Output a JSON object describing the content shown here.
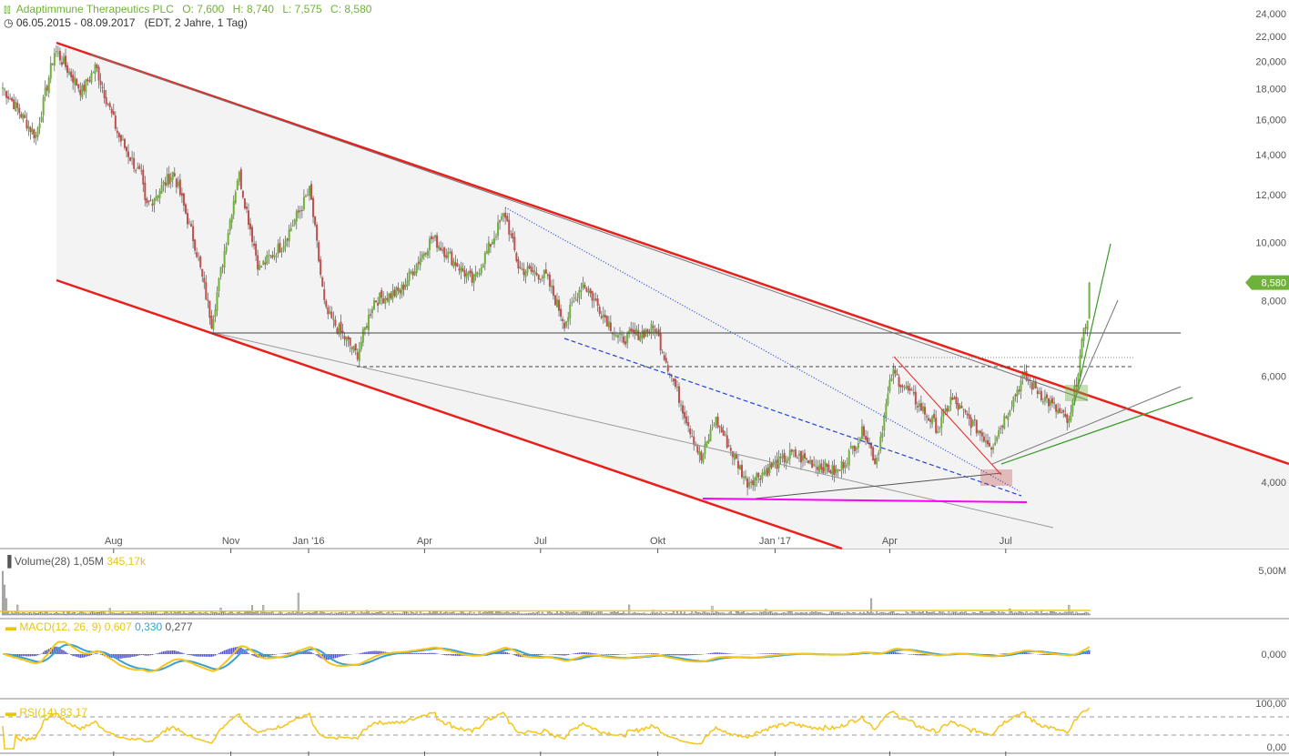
{
  "header": {
    "title": "Adaptimmune Therapeutics PLC",
    "open": "O: 7,600",
    "high": "H: 8,740",
    "low": "L: 7,575",
    "close": "C: 8,580",
    "range": "06.05.2015 - 08.09.2017",
    "meta": "(EDT, 2 Jahre, 1 Tag)"
  },
  "colors": {
    "up": "#6fb23a",
    "down": "#c0504d",
    "channel": "#e8201c",
    "macd": "#f5c518",
    "signal": "#3aa0d0",
    "hist": "#5555cc",
    "rsi": "#f5c518",
    "magenta": "#ff00ff",
    "blue": "#2244dd"
  },
  "chart_data": [
    {
      "type": "candlestick",
      "scale": "log",
      "ylim": [
        3500,
        25000
      ],
      "y_ticks": [
        "24,000",
        "22,000",
        "20,000",
        "18,000",
        "16,000",
        "14,000",
        "12,000",
        "10,000",
        "8,000",
        "6,000",
        "4,000"
      ],
      "y_tick_values": [
        24000,
        22000,
        20000,
        18000,
        16000,
        14000,
        12000,
        10000,
        8000,
        6000,
        4000
      ],
      "x_ticks": [
        {
          "label": "Aug",
          "date": "2015-08-01"
        },
        {
          "label": "Nov",
          "date": "2015-11-01"
        },
        {
          "label": "Jan '16",
          "date": "2016-01-01"
        },
        {
          "label": "Apr",
          "date": "2016-04-01"
        },
        {
          "label": "Jul",
          "date": "2016-07-01"
        },
        {
          "label": "Okt",
          "date": "2016-10-01"
        },
        {
          "label": "Jan '17",
          "date": "2017-01-01"
        },
        {
          "label": "Apr",
          "date": "2017-04-01"
        },
        {
          "label": "Jul",
          "date": "2017-07-01"
        }
      ],
      "last_price_label": "8,580",
      "closes": [
        [
          "2015-05-06",
          18.1
        ],
        [
          "2015-06-01",
          15.0
        ],
        [
          "2015-06-16",
          20.9
        ],
        [
          "2015-07-07",
          17.8
        ],
        [
          "2015-07-18",
          19.6
        ],
        [
          "2015-08-05",
          15.0
        ],
        [
          "2015-08-23",
          12.8
        ],
        [
          "2015-08-26",
          11.4
        ],
        [
          "2015-09-17",
          13.1
        ],
        [
          "2015-10-04",
          9.9
        ],
        [
          "2015-10-17",
          7.35
        ],
        [
          "2015-11-07",
          13.1
        ],
        [
          "2015-11-23",
          9.05
        ],
        [
          "2015-12-11",
          9.9
        ],
        [
          "2016-01-02",
          12.2
        ],
        [
          "2016-01-14",
          7.7
        ],
        [
          "2016-02-08",
          6.5
        ],
        [
          "2016-02-21",
          8.0
        ],
        [
          "2016-03-13",
          8.3
        ],
        [
          "2016-04-07",
          10.2
        ],
        [
          "2016-05-09",
          8.6
        ],
        [
          "2016-06-03",
          11.2
        ],
        [
          "2016-06-14",
          9.05
        ],
        [
          "2016-07-05",
          8.8
        ],
        [
          "2016-07-20",
          7.35
        ],
        [
          "2016-08-03",
          8.6
        ],
        [
          "2016-09-01",
          6.9
        ],
        [
          "2016-09-29",
          7.2
        ],
        [
          "2016-10-13",
          5.9
        ],
        [
          "2016-11-04",
          4.35
        ],
        [
          "2016-11-15",
          5.1
        ],
        [
          "2016-12-10",
          4.0
        ],
        [
          "2017-01-14",
          4.45
        ],
        [
          "2017-02-19",
          4.15
        ],
        [
          "2017-03-12",
          4.9
        ],
        [
          "2017-03-21",
          4.3
        ],
        [
          "2017-04-03",
          6.1
        ],
        [
          "2017-05-09",
          4.9
        ],
        [
          "2017-05-19",
          5.5
        ],
        [
          "2017-06-20",
          4.6
        ],
        [
          "2017-07-15",
          6.0
        ],
        [
          "2017-08-20",
          5.0
        ],
        [
          "2017-08-31",
          7.0
        ],
        [
          "2017-09-08",
          8.58
        ]
      ]
    },
    {
      "type": "bar",
      "title": "Volume(28)",
      "value": "1,05M",
      "ma_value": "345,17k",
      "y_ticks": [
        "5,00M"
      ]
    },
    {
      "type": "line",
      "title": "MACD(12, 26, 9)",
      "values": [
        "0,607",
        "0,330",
        "0,277"
      ],
      "y_ticks": [
        "0,000"
      ]
    },
    {
      "type": "line",
      "title": "RSI(14)",
      "value": "83,17",
      "y_ticks": [
        "100,00",
        "0,00"
      ]
    }
  ]
}
